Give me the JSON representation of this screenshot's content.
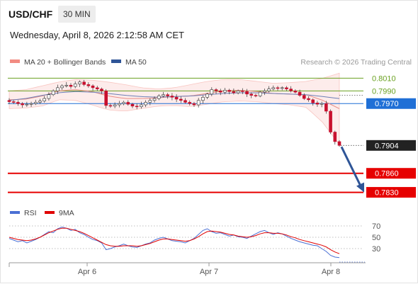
{
  "header": {
    "symbol": "USD/CHF",
    "timeframe": "30 MIN",
    "datetime": "Wednesday, April 8, 2026 2:12:58 AM CET"
  },
  "legend": {
    "bollinger": {
      "label": "MA 20 + Bollinger Bands",
      "color": "#f28b82"
    },
    "ma50": {
      "label": "MA 50",
      "color": "#2f5597"
    },
    "credit": "Research © 2026 Trading Central"
  },
  "rsi_legend": {
    "rsi": {
      "label": "RSI",
      "color": "#4a6fd4"
    },
    "ma": {
      "label": "9MA",
      "color": "#e00000"
    }
  },
  "levels": {
    "r2": {
      "value": "0.8010",
      "color": "#6aa121"
    },
    "r1": {
      "value": "0.7990",
      "color": "#6aa121"
    },
    "pivot": {
      "value": "0.7970",
      "color": "#1f6fd6"
    },
    "last": {
      "value": "0.7904",
      "color": "#222222"
    },
    "s1": {
      "value": "0.7860",
      "color": "#e60000"
    },
    "s2": {
      "value": "0.7830",
      "color": "#e60000"
    }
  },
  "chart_data": {
    "type": "candlestick",
    "symbol": "USD/CHF",
    "timeframe": "30 MIN",
    "x_ticks": [
      "Apr 6",
      "Apr 7",
      "Apr 8"
    ],
    "y_range": [
      0.7815,
      0.8025
    ],
    "price_path": [
      0.7973,
      0.7972,
      0.797,
      0.7968,
      0.7969,
      0.797,
      0.7972,
      0.7974,
      0.7978,
      0.7984,
      0.799,
      0.7995,
      0.7998,
      0.7999,
      0.7997,
      0.8001,
      0.8004,
      0.8,
      0.7998,
      0.7995,
      0.7993,
      0.799,
      0.7967,
      0.7966,
      0.7968,
      0.797,
      0.7972,
      0.7969,
      0.7966,
      0.7965,
      0.7968,
      0.7972,
      0.7975,
      0.7978,
      0.7982,
      0.7984,
      0.7982,
      0.798,
      0.7977,
      0.7975,
      0.7972,
      0.797,
      0.7968,
      0.7975,
      0.798,
      0.7985,
      0.7992,
      0.799,
      0.7988,
      0.7991,
      0.7989,
      0.7987,
      0.799,
      0.7989,
      0.7985,
      0.7983,
      0.7982,
      0.7988,
      0.799,
      0.7993,
      0.7995,
      0.7994,
      0.7995,
      0.7993,
      0.799,
      0.7988,
      0.7983,
      0.7978,
      0.7976,
      0.7971,
      0.7969,
      0.797,
      0.7958,
      0.7925,
      0.791,
      0.7904
    ],
    "bollinger_upper_path": [
      0.799,
      0.7992,
      0.7998,
      0.8004,
      0.8008,
      0.8007,
      0.8004,
      0.8,
      0.7995,
      0.7993,
      0.7995,
      0.8,
      0.8005,
      0.8008,
      0.8008,
      0.8005,
      0.8002,
      0.8003,
      0.8005,
      0.801,
      0.8018
    ],
    "bollinger_lower_path": [
      0.7962,
      0.7963,
      0.7966,
      0.7976,
      0.7975,
      0.7968,
      0.796,
      0.7958,
      0.7962,
      0.7966,
      0.7967,
      0.7965,
      0.7969,
      0.7973,
      0.7974,
      0.7973,
      0.797,
      0.7968,
      0.7964,
      0.794,
      0.7905
    ],
    "ma20_path": [
      0.7976,
      0.7977,
      0.7982,
      0.799,
      0.7992,
      0.7989,
      0.7982,
      0.7978,
      0.7978,
      0.7979,
      0.7981,
      0.7982,
      0.7986,
      0.799,
      0.7991,
      0.7989,
      0.7986,
      0.7985,
      0.7984,
      0.7975,
      0.7962
    ],
    "ma50_path": [
      0.7975,
      0.7978,
      0.7983,
      0.7987,
      0.7989,
      0.7988,
      0.7986,
      0.7983,
      0.7981,
      0.798,
      0.7981,
      0.7982,
      0.7984,
      0.7986,
      0.7987,
      0.7987,
      0.7986,
      0.7985,
      0.7984,
      0.7981,
      0.7978
    ],
    "levels": [
      0.801,
      0.799,
      0.797,
      0.786,
      0.783
    ],
    "last_price": 0.7904,
    "arrow_target": 0.783,
    "rsi": {
      "y_range": [
        10,
        80
      ],
      "ticks": [
        70,
        50,
        30
      ],
      "rsi_path": [
        48,
        45,
        42,
        44,
        40,
        43,
        46,
        50,
        55,
        60,
        58,
        65,
        68,
        66,
        62,
        64,
        58,
        55,
        50,
        46,
        44,
        40,
        28,
        30,
        33,
        35,
        38,
        35,
        33,
        32,
        35,
        38,
        40,
        45,
        48,
        50,
        47,
        44,
        43,
        42,
        40,
        44,
        48,
        55,
        62,
        65,
        60,
        57,
        58,
        55,
        52,
        54,
        51,
        50,
        48,
        52,
        56,
        60,
        62,
        58,
        55,
        58,
        56,
        52,
        48,
        45,
        42,
        40,
        38,
        36,
        35,
        30,
        25,
        18,
        15,
        14
      ],
      "ma_path": [
        50,
        48,
        46,
        45,
        44,
        45,
        47,
        50,
        54,
        58,
        61,
        64,
        66,
        66,
        64,
        62,
        60,
        57,
        53,
        49,
        45,
        41,
        37,
        35,
        34,
        34,
        35,
        35,
        35,
        34,
        35,
        37,
        39,
        42,
        45,
        47,
        47,
        46,
        45,
        44,
        43,
        44,
        47,
        51,
        56,
        60,
        61,
        60,
        59,
        57,
        55,
        54,
        52,
        51,
        50,
        51,
        53,
        56,
        58,
        58,
        57,
        57,
        56,
        54,
        51,
        49,
        46,
        44,
        42,
        40,
        38,
        36,
        33,
        28,
        24,
        21
      ]
    }
  }
}
